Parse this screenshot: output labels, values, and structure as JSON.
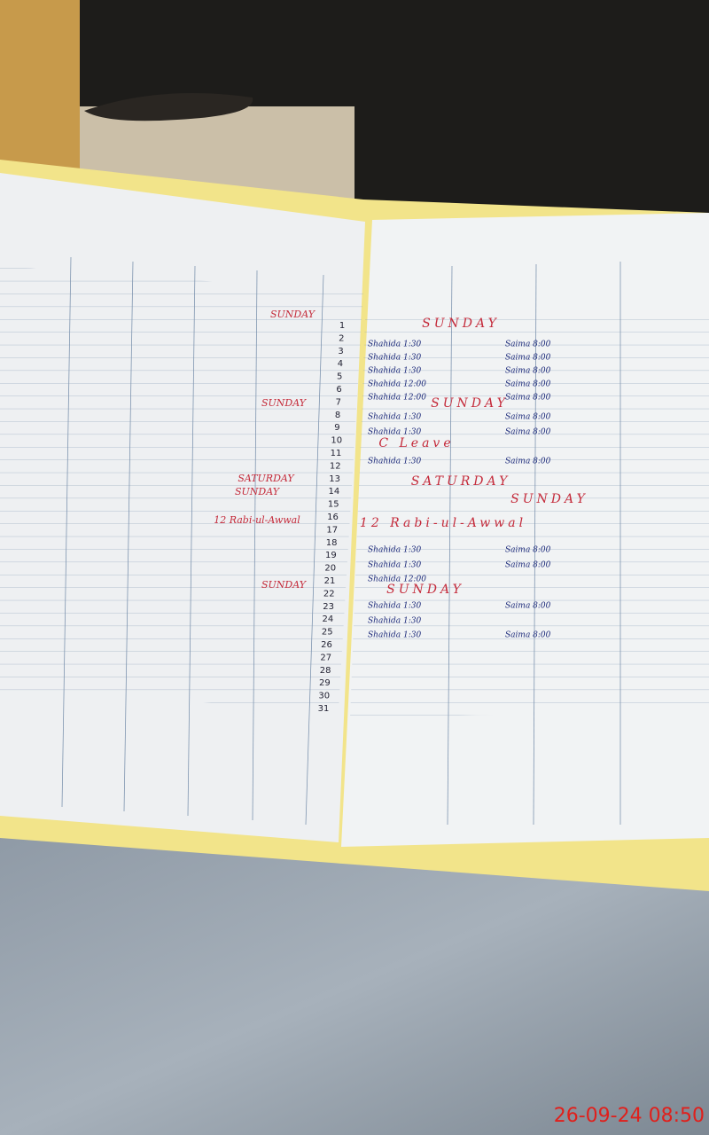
{
  "timestamp": "26-09-24 08:50",
  "left_page": {
    "row_numbers": [
      1,
      2,
      3,
      4,
      5,
      6,
      7,
      8,
      9,
      10,
      11,
      12,
      13,
      14,
      15,
      16,
      17,
      18,
      19,
      20,
      21,
      22,
      23,
      24,
      25,
      26,
      27,
      28,
      29,
      30,
      31
    ],
    "holidays": [
      "SUNDAY",
      "SUNDAY",
      "SATURDAY",
      "SUNDAY",
      "12 Rabi-ul-Awwal",
      "SUNDAY"
    ]
  },
  "right_page": {
    "holidays": [
      "SUNDAY",
      "SUNDAY",
      "C Leave",
      "SATURDAY",
      "SUNDAY",
      "12 Rabi-ul-Awwal",
      "SUNDAY"
    ],
    "entries": [
      "Shahida 1:30",
      "Shahida 1:30",
      "Shahida 1:30",
      "Shahida 12:00",
      "Shahida 12:00",
      "Shahida 1:30",
      "Shahida 1:30",
      "Shahida 1:30",
      "Shahida 1:30",
      "Shahida 1:30",
      "Shahida 12:00",
      "Shahida 1:30",
      "Shahida 1:30",
      "Shahida 1:30",
      "Saima 8:00",
      "Saima 8:00",
      "Saima 8:00",
      "Saima 8:00",
      "Saima 8:00",
      "Saima 8:00",
      "Saima 8:00",
      "Saima 8:00",
      "Saima 8:00",
      "Saima 8:00",
      "Saima 8:00",
      "Saima 8:00"
    ]
  }
}
